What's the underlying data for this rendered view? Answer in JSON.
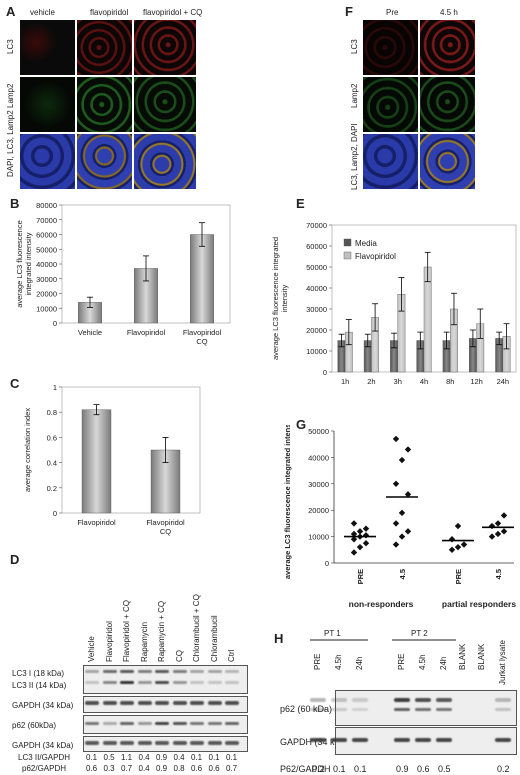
{
  "panels": {
    "A": {
      "label": "A",
      "columns": [
        "vehicle",
        "flavopiridol",
        "flavopiridol + CQ"
      ],
      "rows": [
        "LC3",
        "Lamp2",
        "DAPI, LC3, Lamp2"
      ]
    },
    "F": {
      "label": "F",
      "columns": [
        "Pre",
        "4.5 h"
      ],
      "rows": [
        "LC3",
        "Lamp2",
        "LC3, Lamp2, DAPI"
      ]
    },
    "B": {
      "label": "B"
    },
    "C": {
      "label": "C"
    },
    "D": {
      "label": "D",
      "lanes": [
        "Vehicle",
        "Flavopiridol",
        "Flavopiridol + CQ",
        "Rapamycin",
        "Rapamycin + CQ",
        "CQ",
        "Chlorambucil + CQ",
        "Chlorambucil",
        "Ctrl"
      ],
      "blots": [
        "LC3 I (18 kDa)",
        "LC3 II (14 kDa)",
        "GAPDH (34 kDa)",
        "p62 (60kDa)",
        "GAPDH (34 kDa)"
      ],
      "ratios": [
        {
          "label": "LC3 II/GAPDH",
          "values": [
            "0.1",
            "0.5",
            "1.1",
            "0.4",
            "0.9",
            "0.4",
            "0.1",
            "0.1",
            "0.1"
          ]
        },
        {
          "label": "p62/GAPDH",
          "values": [
            "0.6",
            "0.3",
            "0.7",
            "0.4",
            "0.9",
            "0.8",
            "0.6",
            "0.6",
            "0.7"
          ]
        }
      ]
    },
    "E": {
      "label": "E"
    },
    "G": {
      "label": "G"
    },
    "H": {
      "label": "H",
      "groups": [
        "PT 1",
        "PT 2"
      ],
      "lanes": [
        "PRE",
        "4.5h",
        "24h",
        "PRE",
        "4.5h",
        "24h",
        "BLANK",
        "BLANK",
        "Jurkat lysate"
      ],
      "blots": [
        "p62 (60 kDa)",
        "GAPDH (34 kDa)"
      ],
      "ratio_label": "P62/GAPDH",
      "ratio_values": [
        "0.2",
        "0.1",
        "0.1",
        "0.9",
        "0.6",
        "0.5",
        "0.2"
      ]
    }
  },
  "chart_data": [
    {
      "panel": "B",
      "type": "bar",
      "categories": [
        "Vehicle",
        "Flavopiridol",
        "Flavopiridol CQ"
      ],
      "values": [
        14000,
        37000,
        60000
      ],
      "errors": [
        3500,
        8500,
        8000
      ],
      "ylabel": "average LC3 fluorescence integrated intensity",
      "ylim": [
        0,
        80000
      ],
      "yticks": [
        0,
        10000,
        20000,
        30000,
        40000,
        50000,
        60000,
        70000,
        80000
      ],
      "color": "#7a7a7a"
    },
    {
      "panel": "C",
      "type": "bar",
      "categories": [
        "Flavopiridol",
        "Flavopiridol CQ"
      ],
      "values": [
        0.82,
        0.5
      ],
      "errors": [
        0.04,
        0.1
      ],
      "ylabel": "average correlation index",
      "ylim": [
        0,
        1
      ],
      "yticks": [
        "0",
        "0.2",
        "0.4",
        "0.6",
        "0.8",
        "1"
      ],
      "color": "#7a7a7a"
    },
    {
      "panel": "E",
      "type": "bar",
      "categories": [
        "1h",
        "2h",
        "3h",
        "4h",
        "8h",
        "12h",
        "24h"
      ],
      "series": [
        {
          "name": "Media",
          "values": [
            15000,
            15000,
            15000,
            15000,
            15000,
            16000,
            16000
          ],
          "errors": [
            3000,
            3000,
            3500,
            4000,
            4000,
            4000,
            3000
          ],
          "color": "#555555"
        },
        {
          "name": "Flavopiridol",
          "values": [
            19000,
            26000,
            37000,
            50000,
            30000,
            23000,
            17000
          ],
          "errors": [
            6000,
            6500,
            8000,
            7000,
            7500,
            7000,
            6000
          ],
          "color": "#c0c0c0"
        }
      ],
      "ylabel": "average LC3 fluorescence integrated intensity",
      "ylim": [
        0,
        70000
      ],
      "yticks": [
        0,
        10000,
        20000,
        30000,
        40000,
        50000,
        60000,
        70000
      ],
      "legend": "top-left"
    },
    {
      "panel": "G",
      "type": "scatter",
      "categories": [
        "PRE",
        "4.5",
        "PRE",
        "4.5"
      ],
      "groups": [
        "non-responders",
        "partial responders"
      ],
      "points": [
        [
          4000,
          6000,
          7500,
          9000,
          10000,
          10500,
          11000,
          12000,
          13000,
          15000
        ],
        [
          7000,
          10000,
          12000,
          15000,
          19000,
          26000,
          30000,
          39000,
          43000,
          47000
        ],
        [
          5000,
          6000,
          7000,
          9000,
          14000
        ],
        [
          10000,
          11000,
          12000,
          14000,
          15000,
          18000
        ]
      ],
      "means": [
        10000,
        25000,
        8500,
        13500
      ],
      "ylabel": "average LC3 fluorescence integrated intensity",
      "ylim": [
        0,
        50000
      ],
      "yticks": [
        0,
        10000,
        20000,
        30000,
        40000,
        50000
      ]
    }
  ]
}
